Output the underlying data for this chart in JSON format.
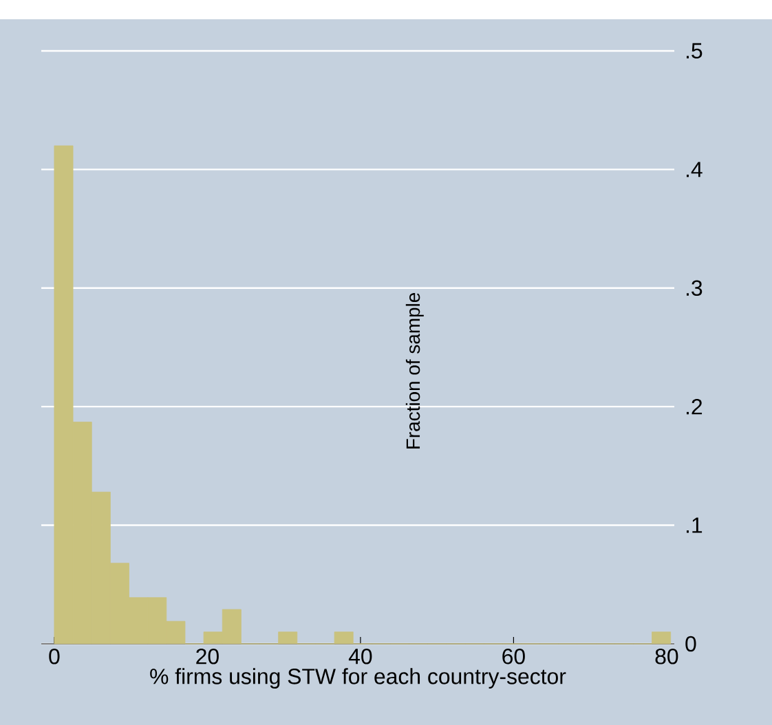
{
  "chart_data": {
    "type": "histogram",
    "xlabel": "% firms using STW for each country-sector",
    "ylabel": "Fraction of sample",
    "bins": [
      0,
      2.44,
      4.88,
      7.32,
      9.76,
      12.2,
      14.64,
      17.08,
      19.52,
      21.96,
      24.4,
      26.84,
      29.28,
      31.72,
      34.16,
      36.6,
      39.04,
      41.48,
      43.92,
      46.36,
      48.8,
      51.24,
      53.68,
      56.12,
      58.56,
      61.0,
      63.44,
      65.88,
      68.32,
      70.76,
      73.2,
      75.64,
      78.08,
      80.52
    ],
    "values": [
      0.42,
      0.187,
      0.128,
      0.068,
      0.039,
      0.039,
      0.019,
      0,
      0.01,
      0.029,
      0,
      0,
      0.01,
      0,
      0,
      0.01,
      0,
      0,
      0,
      0,
      0,
      0,
      0,
      0,
      0,
      0,
      0,
      0,
      0,
      0,
      0,
      0,
      0.01
    ],
    "color": "#c9c27e",
    "xlim": [
      -1.7,
      81.0
    ],
    "ylim": [
      0,
      0.5
    ],
    "xticks": [
      0,
      20,
      40,
      60,
      80
    ],
    "yticks": [
      0,
      {
        "value": 0.1,
        "label": ".1"
      },
      {
        "value": 0.2,
        "label": ".2"
      },
      {
        "value": 0.3,
        "label": ".3"
      },
      {
        "value": 0.4,
        "label": ".4"
      },
      {
        "value": 0.5,
        "label": ".5"
      }
    ],
    "grid": "y"
  }
}
